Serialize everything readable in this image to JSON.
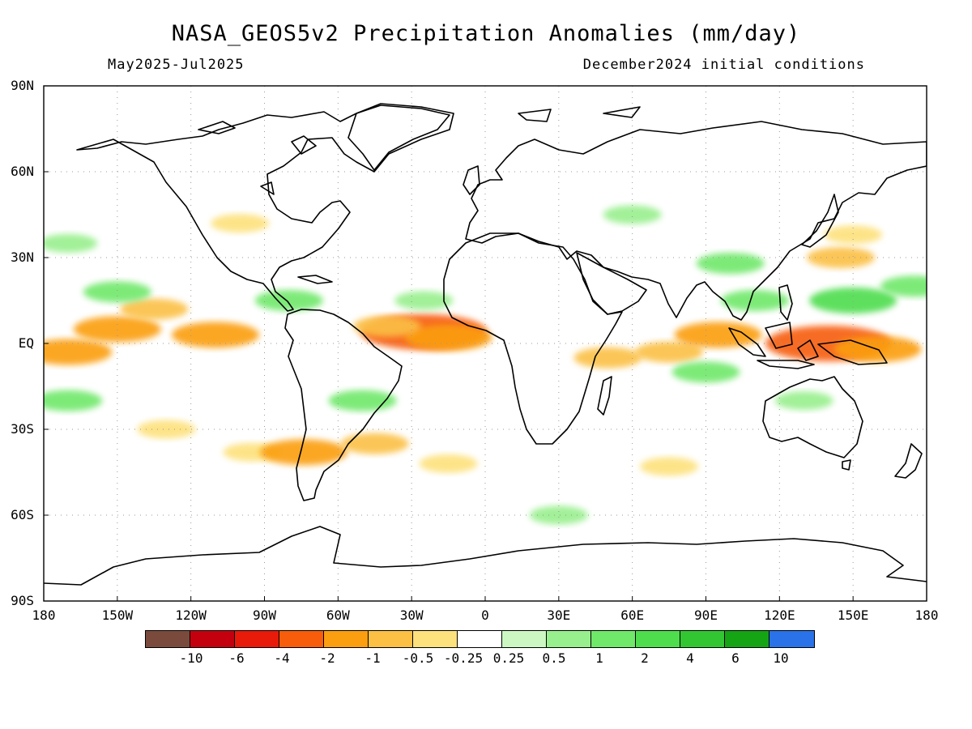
{
  "title": "NASA_GEOS5v2 Precipitation Anomalies (mm/day)",
  "subtitle_left": "May2025-Jul2025",
  "subtitle_right": "December2024 initial conditions",
  "lat_labels": [
    "90N",
    "60N",
    "30N",
    "EQ",
    "30S",
    "60S",
    "90S"
  ],
  "lon_labels": [
    "180",
    "150W",
    "120W",
    "90W",
    "60W",
    "30W",
    "0",
    "30E",
    "60E",
    "90E",
    "120E",
    "150E",
    "180"
  ],
  "colorbar": {
    "colors": [
      "#7a4b3c",
      "#c4000f",
      "#e81a0a",
      "#f75d0a",
      "#fb9e10",
      "#fbc044",
      "#fde17c",
      "#ffffff",
      "#ccf7c3",
      "#98ef8d",
      "#70e86a",
      "#4edd4d",
      "#33c633",
      "#14a414",
      "#2a72e8"
    ],
    "labels": [
      "-10",
      "-6",
      "-4",
      "-2",
      "-1",
      "-0.5",
      "-0.25",
      "0.25",
      "0.5",
      "1",
      "2",
      "4",
      "6",
      "10"
    ]
  },
  "chart_data": {
    "type": "heatmap",
    "title": "NASA_GEOS5v2 Precipitation Anomalies (mm/day)",
    "subtitle": "May2025-Jul2025",
    "note": "December2024 initial conditions",
    "xlim": [
      -180,
      180
    ],
    "ylim": [
      -90,
      90
    ],
    "grid": "dotted",
    "levels": [
      -10,
      -6,
      -4,
      -2,
      -1,
      -0.5,
      -0.25,
      0.25,
      0.5,
      1,
      2,
      4,
      6,
      10
    ],
    "anomaly_regions": [
      {
        "lon": -150,
        "lat": 5,
        "value": -2
      },
      {
        "lon": -110,
        "lat": 3,
        "value": -2
      },
      {
        "lon": -170,
        "lat": -3,
        "value": -2
      },
      {
        "lon": -135,
        "lat": 12,
        "value": -1
      },
      {
        "lon": -25,
        "lat": 4,
        "value": -4
      },
      {
        "lon": -15,
        "lat": 2,
        "value": -2
      },
      {
        "lon": -40,
        "lat": 6,
        "value": -1
      },
      {
        "lon": 140,
        "lat": 0,
        "value": -4
      },
      {
        "lon": 160,
        "lat": -2,
        "value": -2
      },
      {
        "lon": 75,
        "lat": -3,
        "value": -1
      },
      {
        "lon": 50,
        "lat": -5,
        "value": -1
      },
      {
        "lon": 95,
        "lat": 3,
        "value": -2
      },
      {
        "lon": 145,
        "lat": 30,
        "value": -1
      },
      {
        "lon": 150,
        "lat": 38,
        "value": -0.5
      },
      {
        "lon": -130,
        "lat": -30,
        "value": -0.5
      },
      {
        "lon": -95,
        "lat": -38,
        "value": -0.5
      },
      {
        "lon": -74,
        "lat": -38,
        "value": -2
      },
      {
        "lon": -45,
        "lat": -35,
        "value": -1
      },
      {
        "lon": -15,
        "lat": -42,
        "value": -0.5
      },
      {
        "lon": 75,
        "lat": -43,
        "value": -0.5
      },
      {
        "lon": -100,
        "lat": 42,
        "value": -0.5
      },
      {
        "lon": -150,
        "lat": 18,
        "value": 1
      },
      {
        "lon": -80,
        "lat": 15,
        "value": 1
      },
      {
        "lon": -25,
        "lat": 15,
        "value": 0.5
      },
      {
        "lon": 100,
        "lat": 28,
        "value": 1
      },
      {
        "lon": 110,
        "lat": 15,
        "value": 1
      },
      {
        "lon": 150,
        "lat": 15,
        "value": 2
      },
      {
        "lon": 175,
        "lat": 20,
        "value": 1
      },
      {
        "lon": 90,
        "lat": -10,
        "value": 1
      },
      {
        "lon": 130,
        "lat": -20,
        "value": 0.5
      },
      {
        "lon": -170,
        "lat": -20,
        "value": 1
      },
      {
        "lon": -50,
        "lat": -20,
        "value": 1
      },
      {
        "lon": 60,
        "lat": 45,
        "value": 0.5
      },
      {
        "lon": 30,
        "lat": -60,
        "value": 0.5
      },
      {
        "lon": -170,
        "lat": 35,
        "value": 0.5
      }
    ]
  }
}
